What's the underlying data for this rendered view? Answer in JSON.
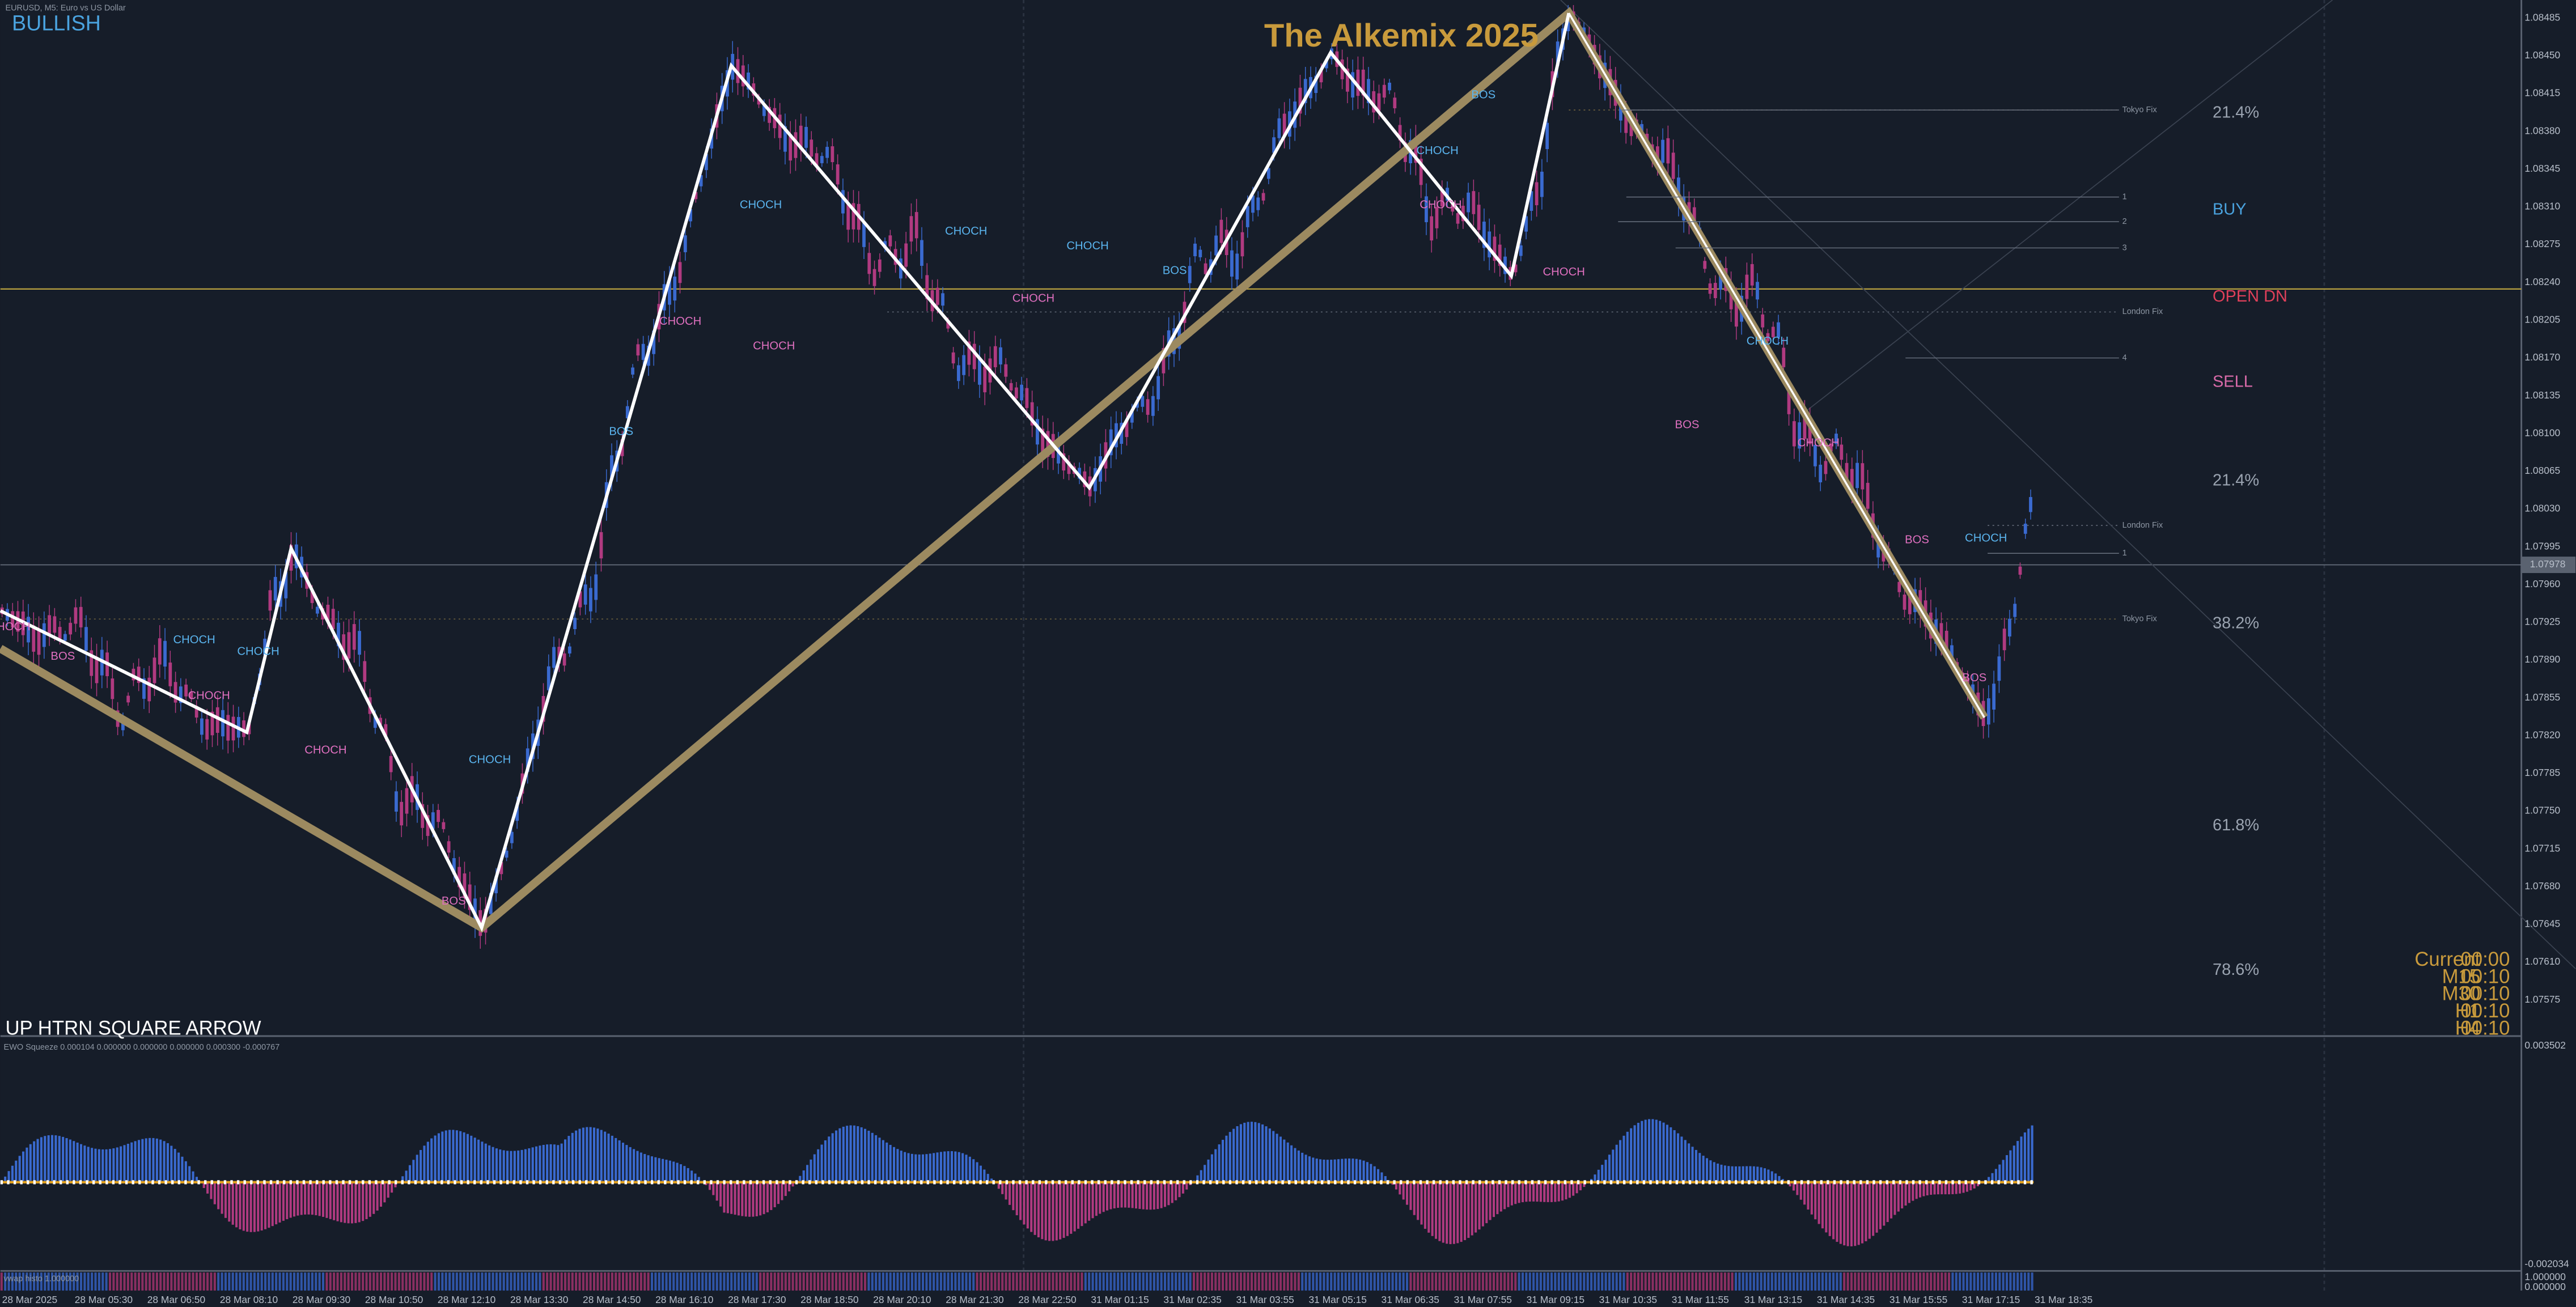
{
  "header": {
    "symbol": "EURUSD, M5:  Euro vs US Dollar",
    "bias": "BULLISH",
    "title": "The Alkemix 2025"
  },
  "price_axis": {
    "labels": [
      "1.08485",
      "1.08450",
      "1.08415",
      "1.08380",
      "1.08345",
      "1.08310",
      "1.08275",
      "1.08240",
      "1.08205",
      "1.08170",
      "1.08135",
      "1.08100",
      "1.08065",
      "1.08030",
      "1.07995",
      "1.07960",
      "1.07925",
      "1.07890",
      "1.07855",
      "1.07820",
      "1.07785",
      "1.07750",
      "1.07715",
      "1.07680",
      "1.07645",
      "1.07610",
      "1.07575"
    ],
    "current": "1.07978"
  },
  "time_axis": {
    "labels": [
      "28 Mar 2025",
      "28 Mar 05:30",
      "28 Mar 06:50",
      "28 Mar 08:10",
      "28 Mar 09:30",
      "28 Mar 10:50",
      "28 Mar 12:10",
      "28 Mar 13:30",
      "28 Mar 14:50",
      "28 Mar 16:10",
      "28 Mar 17:30",
      "28 Mar 18:50",
      "28 Mar 20:10",
      "28 Mar 21:30",
      "28 Mar 22:50",
      "31 Mar 01:15",
      "31 Mar 02:35",
      "31 Mar 03:55",
      "31 Mar 05:15",
      "31 Mar 06:35",
      "31 Mar 07:55",
      "31 Mar 09:15",
      "31 Mar 10:35",
      "31 Mar 11:55",
      "31 Mar 13:15",
      "31 Mar 14:35",
      "31 Mar 15:55",
      "31 Mar 17:15",
      "31 Mar 18:35"
    ]
  },
  "levels": [
    {
      "label": "21.4%",
      "color": "#9aa3b0"
    },
    {
      "label": "BUY",
      "color": "#4aa3df"
    },
    {
      "label": "OPEN DN",
      "color": "#e0405a"
    },
    {
      "label": "SELL",
      "color": "#d76aa8"
    },
    {
      "label": "21.4%",
      "color": "#9aa3b0"
    },
    {
      "label": "38.2%",
      "color": "#9aa3b0"
    },
    {
      "label": "61.8%",
      "color": "#9aa3b0"
    },
    {
      "label": "78.6%",
      "color": "#9aa3b0"
    }
  ],
  "fix_labels": [
    "Tokyo Fix",
    "1",
    "2",
    "3",
    "London Fix",
    "4",
    "London Fix",
    "1",
    "Tokyo Fix"
  ],
  "annotations": [
    {
      "text": "CHOCH",
      "color": "#5ab4ee"
    },
    {
      "text": "BOS",
      "color": "#e070c0"
    },
    {
      "text": "CHOCH",
      "color": "#5ab4ee"
    },
    {
      "text": "CHOCH",
      "color": "#e070c0"
    },
    {
      "text": "CHOCH",
      "color": "#e070c0"
    },
    {
      "text": "CHOCH",
      "color": "#5ab4ee"
    },
    {
      "text": "BOS",
      "color": "#e070c0"
    },
    {
      "text": "BOS",
      "color": "#5ab4ee"
    },
    {
      "text": "CHOCH",
      "color": "#e070c0"
    },
    {
      "text": "CHOCH",
      "color": "#5ab4ee"
    },
    {
      "text": "CHOCH",
      "color": "#e070c0"
    },
    {
      "text": "CHOCH",
      "color": "#5ab4ee"
    },
    {
      "text": "CHOCH",
      "color": "#e070c0"
    },
    {
      "text": "CHOCH",
      "color": "#5ab4ee"
    },
    {
      "text": "BOS",
      "color": "#5ab4ee"
    },
    {
      "text": "CHOCH",
      "color": "#5ab4ee"
    },
    {
      "text": "CHOCH",
      "color": "#e070c0"
    },
    {
      "text": "BOS",
      "color": "#5ab4ee"
    },
    {
      "text": "CHOCH",
      "color": "#e070c0"
    },
    {
      "text": "CHOCH",
      "color": "#5ab4ee"
    },
    {
      "text": "BOS",
      "color": "#e070c0"
    },
    {
      "text": "CHOCH",
      "color": "#e070c0"
    },
    {
      "text": "BOS",
      "color": "#e070c0"
    },
    {
      "text": "CHOCH",
      "color": "#5ab4ee"
    },
    {
      "text": "BOS",
      "color": "#e070c0"
    },
    {
      "text": "HOCH",
      "color": "#e070c0"
    }
  ],
  "timers": [
    {
      "label": "Current",
      "time": "00:00"
    },
    {
      "label": "M15",
      "time": "00:10"
    },
    {
      "label": "M30",
      "time": "00:10"
    },
    {
      "label": "H1",
      "time": "00:10"
    },
    {
      "label": "H4",
      "time": "00:10"
    }
  ],
  "signal": "UP HTRN SQUARE ARROW",
  "indicator": {
    "label": "EWO Squeeze 0.000104 0.000000 0.000000 0.000000 0.000300 -0.000767",
    "axis": [
      "0.003502",
      "-0.002034"
    ]
  },
  "vwap": {
    "label": "vwap histo 1.000000",
    "axis": [
      "1.000000",
      "0.000000"
    ]
  }
}
